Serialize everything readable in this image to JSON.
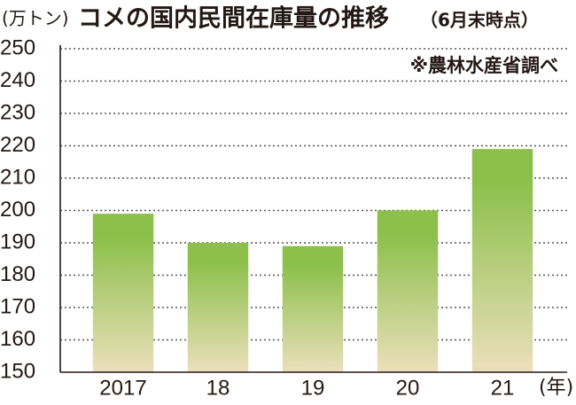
{
  "chart_data": {
    "type": "bar",
    "title": "コメの国内民間在庫量の推移",
    "subtitle": "（6月末時点）",
    "y_label": "(万トン)",
    "x_label": "(年)",
    "source": "※農林水産省調べ",
    "categories": [
      "2017",
      "18",
      "19",
      "20",
      "21"
    ],
    "values": [
      199,
      190,
      189,
      200,
      219
    ],
    "color": "#8cc04b",
    "ylim": [
      150,
      250
    ],
    "yticks": [
      150,
      160,
      170,
      180,
      190,
      200,
      210,
      220,
      230,
      240,
      250
    ],
    "grid": true
  }
}
